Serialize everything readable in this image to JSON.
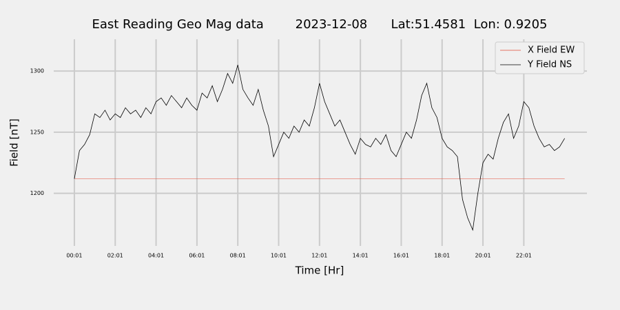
{
  "chart_data": {
    "type": "line",
    "title": "East Reading Geo Mag data        2023-12-08      Lat:51.4581  Lon: 0.9205",
    "x_label": "Time  [Hr]",
    "y_label": "Field  [nT]",
    "x": [
      0,
      0.25,
      0.5,
      0.75,
      1,
      1.25,
      1.5,
      1.75,
      2,
      2.25,
      2.5,
      2.75,
      3,
      3.25,
      3.5,
      3.75,
      4,
      4.25,
      4.5,
      4.75,
      5,
      5.25,
      5.5,
      5.75,
      6,
      6.25,
      6.5,
      6.75,
      7,
      7.25,
      7.5,
      7.75,
      8,
      8.25,
      8.5,
      8.75,
      9,
      9.25,
      9.5,
      9.75,
      10,
      10.25,
      10.5,
      10.75,
      11,
      11.25,
      11.5,
      11.75,
      12,
      12.25,
      12.5,
      12.75,
      13,
      13.25,
      13.5,
      13.75,
      14,
      14.25,
      14.5,
      14.75,
      15,
      15.25,
      15.5,
      15.75,
      16,
      16.25,
      16.5,
      16.75,
      17,
      17.25,
      17.5,
      17.75,
      18,
      18.25,
      18.5,
      18.75,
      19,
      19.25,
      19.5,
      19.75,
      20,
      20.25,
      20.5,
      20.75,
      21,
      21.25,
      21.5,
      21.75,
      22,
      22.25,
      22.5,
      22.75,
      23,
      23.25,
      23.5,
      23.75,
      24
    ],
    "series": [
      {
        "name": "X Field EW",
        "color": "#e24a33",
        "values": [
          1212,
          1212,
          1212,
          1212,
          1212,
          1212,
          1212,
          1212,
          1212,
          1212,
          1212,
          1212,
          1212,
          1212,
          1212,
          1212,
          1212,
          1212,
          1212,
          1212,
          1212,
          1212,
          1212,
          1212,
          1212,
          1212,
          1212,
          1212,
          1212,
          1212,
          1212,
          1212,
          1212,
          1212,
          1212,
          1212,
          1212,
          1212,
          1212,
          1212,
          1212,
          1212,
          1212,
          1212,
          1212,
          1212,
          1212,
          1212,
          1212,
          1212,
          1212,
          1212,
          1212,
          1212,
          1212,
          1212,
          1212,
          1212,
          1212,
          1212,
          1212,
          1212,
          1212,
          1212,
          1212,
          1212,
          1212,
          1212,
          1212,
          1212,
          1212,
          1212,
          1212,
          1212,
          1212,
          1212,
          1212,
          1212,
          1212,
          1212,
          1212,
          1212,
          1212,
          1212,
          1212,
          1212,
          1212,
          1212,
          1212,
          1212,
          1212,
          1212,
          1212,
          1212,
          1212,
          1212,
          1212
        ]
      },
      {
        "name": "Y Field NS",
        "color": "#000000",
        "values": [
          1212,
          1235,
          1240,
          1248,
          1265,
          1262,
          1268,
          1260,
          1265,
          1262,
          1270,
          1265,
          1268,
          1262,
          1270,
          1265,
          1275,
          1278,
          1272,
          1280,
          1275,
          1270,
          1278,
          1272,
          1268,
          1282,
          1278,
          1288,
          1275,
          1285,
          1298,
          1290,
          1305,
          1285,
          1278,
          1272,
          1285,
          1268,
          1255,
          1230,
          1240,
          1250,
          1245,
          1255,
          1250,
          1260,
          1255,
          1270,
          1290,
          1275,
          1265,
          1255,
          1260,
          1250,
          1240,
          1232,
          1245,
          1240,
          1238,
          1245,
          1240,
          1248,
          1235,
          1230,
          1240,
          1250,
          1245,
          1260,
          1280,
          1290,
          1270,
          1262,
          1245,
          1238,
          1235,
          1230,
          1195,
          1180,
          1170,
          1200,
          1225,
          1232,
          1228,
          1245,
          1258,
          1265,
          1245,
          1255,
          1275,
          1270,
          1255,
          1245,
          1238,
          1240,
          1235,
          1238,
          1245
        ]
      }
    ],
    "xlim": [
      -1.01,
      25.09
    ],
    "xticks": [
      {
        "value": 0,
        "label": "00:01"
      },
      {
        "value": 2,
        "label": "02:01"
      },
      {
        "value": 4,
        "label": "04:01"
      },
      {
        "value": 6,
        "label": "06:01"
      },
      {
        "value": 8,
        "label": "08:01"
      },
      {
        "value": 10,
        "label": "10:01"
      },
      {
        "value": 12,
        "label": "12:01"
      },
      {
        "value": 14,
        "label": "14:01"
      },
      {
        "value": 16,
        "label": "16:01"
      },
      {
        "value": 18,
        "label": "18:01"
      },
      {
        "value": 20,
        "label": "20:01"
      },
      {
        "value": 22,
        "label": "22:01"
      }
    ],
    "ylim": [
      1157,
      1326
    ],
    "yticks": [
      1200,
      1250,
      1300
    ],
    "grid": true,
    "legend": "upper right"
  }
}
